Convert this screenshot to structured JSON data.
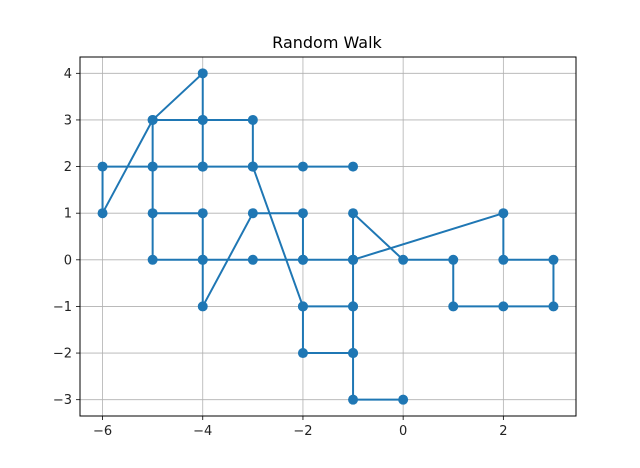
{
  "chart_data": {
    "type": "line",
    "title": "Random Walk",
    "xlabel": "",
    "ylabel": "",
    "xlim": [
      -6.45,
      3.45
    ],
    "ylim": [
      -3.35,
      4.35
    ],
    "xticks": [
      -6,
      -4,
      -2,
      0,
      2
    ],
    "xtick_labels": [
      "−6",
      "−4",
      "−2",
      "0",
      "2"
    ],
    "yticks": [
      -3,
      -2,
      -1,
      0,
      1,
      2,
      3,
      4
    ],
    "ytick_labels": [
      "−3",
      "−2",
      "−1",
      "0",
      "1",
      "2",
      "3",
      "4"
    ],
    "grid": true,
    "legend": "none",
    "colors": {
      "series": "#1f77b4",
      "grid": "#b0b0b0",
      "axes": "#000000"
    },
    "series": [
      {
        "x": [
          0,
          -1,
          -1,
          -1,
          -2,
          -2,
          -1,
          -1,
          -2,
          -3,
          -4,
          -4,
          -5,
          -5,
          -4,
          -3,
          -3,
          -4,
          -5,
          -5,
          -4,
          -4,
          -3,
          -2,
          -2,
          -1,
          -1,
          0,
          1,
          1,
          2,
          3,
          3,
          2,
          2,
          -1,
          -1,
          -2,
          -3,
          -4,
          -4,
          -4,
          -5,
          -6,
          -6,
          -5,
          -4,
          -3,
          -2,
          -1
        ],
        "y": [
          -3,
          -3,
          -2,
          -1,
          -1,
          -2,
          -2,
          0,
          0,
          0,
          0,
          1,
          1,
          3,
          3,
          3,
          2,
          2,
          2,
          0,
          0,
          -1,
          1,
          1,
          0,
          0,
          1,
          0,
          0,
          -1,
          -1,
          -1,
          0,
          0,
          1,
          0,
          -1,
          -1,
          2,
          2,
          3,
          4,
          3,
          1,
          2,
          2,
          2,
          2,
          2,
          2
        ]
      }
    ]
  }
}
